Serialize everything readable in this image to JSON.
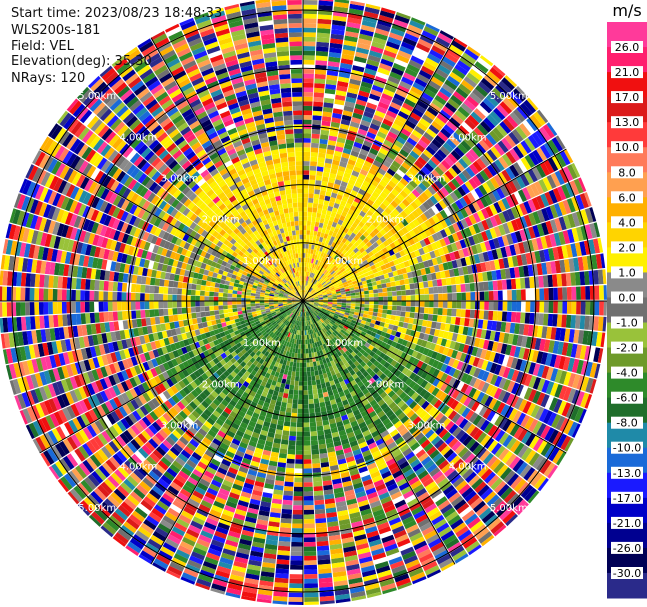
{
  "header": {
    "start_time": "Start time: 2023/08/23 18:48:33",
    "instrument": "WLS200s-181",
    "field": "Field: VEL",
    "elevation": "Elevation(deg): 35.30",
    "nrays": "NRays: 120"
  },
  "chart_data": {
    "type": "heatmap",
    "projection": "polar-ppi",
    "field": "VEL",
    "units": "m/s",
    "range_ring_labels": [
      "1.00km",
      "2.00km",
      "3.00km",
      "4.00km",
      "5.00km"
    ],
    "spokes": 12,
    "colorbar": {
      "label": "m/s",
      "ticks": [
        "26.0",
        "21.0",
        "17.0",
        "13.0",
        "10.0",
        "8.0",
        "6.0",
        "4.0",
        "2.0",
        "1.0",
        "0.0",
        "-1.0",
        "-2.0",
        "-4.0",
        "-6.0",
        "-8.0",
        "-10.0",
        "-13.0",
        "-17.0",
        "-21.0",
        "-26.0",
        "-30.0"
      ],
      "colors": [
        "#ff3a9a",
        "#ff1f6e",
        "#f01010",
        "#dc1a1a",
        "#ff3a3a",
        "#ff7a5a",
        "#ffa050",
        "#ffb000",
        "#ffd400",
        "#fff000",
        "#8a8a8a",
        "#707070",
        "#99c23a",
        "#6e9a2a",
        "#2e8a2a",
        "#1f6e2a",
        "#1f8aa8",
        "#1a6ad8",
        "#1a1aff",
        "#0000c8",
        "#000090",
        "#000055",
        "#2a2a8a"
      ]
    }
  }
}
